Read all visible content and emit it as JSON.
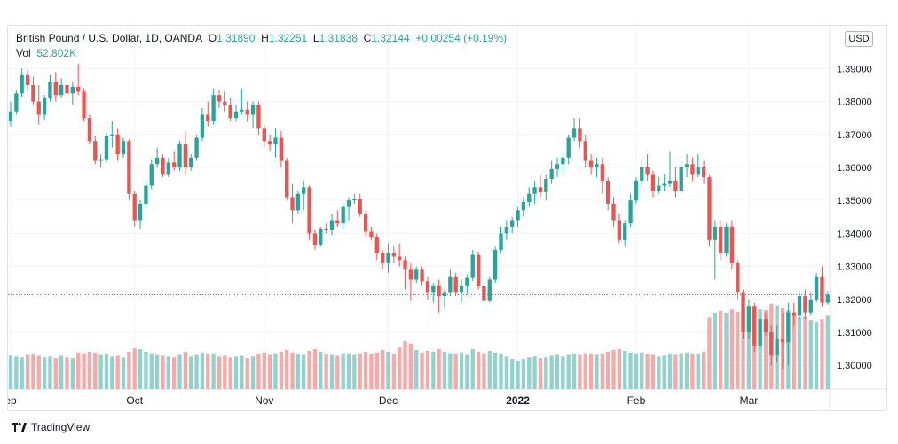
{
  "legend": {
    "symbol": "British Pound / U.S. Dollar, 1D, OANDA",
    "open_label": "O",
    "open": "1.31890",
    "high_label": "H",
    "high": "1.32251",
    "low_label": "L",
    "low": "1.31838",
    "close_label": "C",
    "close": "1.32144",
    "change": "+0.00254 (+0.19%)",
    "vol_label": "Vol",
    "vol": "52.802K"
  },
  "currency_button": "USD",
  "brand": {
    "name": "TradingView",
    "icon": "tradingview-logo-icon"
  },
  "colors": {
    "up": "#26a69a",
    "down": "#ef5350",
    "up_vol": "#92d2cc",
    "down_vol": "#f7a9a7",
    "grid": "#f0f3fa",
    "text": "#131722",
    "last_line": "#787b86"
  },
  "chart_data": {
    "type": "candlestick",
    "title": "British Pound / U.S. Dollar, 1D, OANDA",
    "y_ticks": [
      "1.39000",
      "1.38000",
      "1.37000",
      "1.36000",
      "1.35000",
      "1.34000",
      "1.33000",
      "1.32000",
      "1.31000",
      "1.30000"
    ],
    "y_range": [
      1.2928,
      1.403
    ],
    "x_ticks": [
      {
        "label": "ep",
        "index": 0
      },
      {
        "label": "Oct",
        "index": 22
      },
      {
        "label": "Nov",
        "index": 45
      },
      {
        "label": "Dec",
        "index": 67
      },
      {
        "label": "2022",
        "index": 90
      },
      {
        "label": "Feb",
        "index": 111
      },
      {
        "label": "Mar",
        "index": 131
      }
    ],
    "last_close": 1.32144,
    "candles": [
      [
        1.374,
        1.38,
        1.3725,
        1.377,
        82
      ],
      [
        1.377,
        1.3835,
        1.376,
        1.3825,
        80
      ],
      [
        1.3825,
        1.39,
        1.3815,
        1.388,
        78
      ],
      [
        1.388,
        1.3895,
        1.383,
        1.385,
        84
      ],
      [
        1.385,
        1.3875,
        1.379,
        1.38,
        86
      ],
      [
        1.38,
        1.385,
        1.373,
        1.376,
        82
      ],
      [
        1.376,
        1.382,
        1.3745,
        1.381,
        78
      ],
      [
        1.381,
        1.388,
        1.38,
        1.386,
        80
      ],
      [
        1.386,
        1.389,
        1.38,
        1.382,
        76
      ],
      [
        1.382,
        1.387,
        1.381,
        1.385,
        82
      ],
      [
        1.385,
        1.386,
        1.381,
        1.3825,
        78
      ],
      [
        1.3825,
        1.386,
        1.379,
        1.3845,
        76
      ],
      [
        1.3845,
        1.3915,
        1.382,
        1.383,
        90
      ],
      [
        1.383,
        1.384,
        1.374,
        1.375,
        88
      ],
      [
        1.375,
        1.376,
        1.367,
        1.368,
        92
      ],
      [
        1.368,
        1.3695,
        1.361,
        1.362,
        90
      ],
      [
        1.362,
        1.364,
        1.36,
        1.3625,
        84
      ],
      [
        1.3625,
        1.3705,
        1.3615,
        1.3695,
        86
      ],
      [
        1.3695,
        1.374,
        1.366,
        1.37,
        80
      ],
      [
        1.37,
        1.372,
        1.362,
        1.364,
        82
      ],
      [
        1.364,
        1.369,
        1.363,
        1.368,
        78
      ],
      [
        1.368,
        1.3685,
        1.35,
        1.352,
        92
      ],
      [
        1.352,
        1.353,
        1.342,
        1.344,
        100
      ],
      [
        1.344,
        1.35,
        1.3415,
        1.349,
        98
      ],
      [
        1.349,
        1.356,
        1.348,
        1.3545,
        92
      ],
      [
        1.3545,
        1.3625,
        1.3535,
        1.361,
        88
      ],
      [
        1.361,
        1.366,
        1.36,
        1.363,
        84
      ],
      [
        1.363,
        1.364,
        1.357,
        1.358,
        82
      ],
      [
        1.358,
        1.363,
        1.357,
        1.3615,
        80
      ],
      [
        1.3615,
        1.365,
        1.359,
        1.36,
        78
      ],
      [
        1.36,
        1.368,
        1.359,
        1.367,
        84
      ],
      [
        1.367,
        1.371,
        1.358,
        1.36,
        92
      ],
      [
        1.36,
        1.364,
        1.359,
        1.363,
        80
      ],
      [
        1.363,
        1.37,
        1.362,
        1.369,
        84
      ],
      [
        1.369,
        1.378,
        1.368,
        1.376,
        90
      ],
      [
        1.376,
        1.38,
        1.3725,
        1.374,
        86
      ],
      [
        1.374,
        1.384,
        1.373,
        1.382,
        88
      ],
      [
        1.382,
        1.3835,
        1.378,
        1.38,
        80
      ],
      [
        1.38,
        1.383,
        1.377,
        1.379,
        82
      ],
      [
        1.379,
        1.381,
        1.374,
        1.375,
        78
      ],
      [
        1.375,
        1.379,
        1.374,
        1.377,
        80
      ],
      [
        1.377,
        1.384,
        1.376,
        1.3775,
        82
      ],
      [
        1.3775,
        1.38,
        1.374,
        1.376,
        76
      ],
      [
        1.376,
        1.38,
        1.372,
        1.379,
        80
      ],
      [
        1.379,
        1.38,
        1.37,
        1.372,
        86
      ],
      [
        1.372,
        1.373,
        1.366,
        1.368,
        90
      ],
      [
        1.368,
        1.37,
        1.365,
        1.367,
        84
      ],
      [
        1.367,
        1.372,
        1.363,
        1.369,
        88
      ],
      [
        1.369,
        1.371,
        1.36,
        1.362,
        92
      ],
      [
        1.362,
        1.363,
        1.35,
        1.351,
        96
      ],
      [
        1.351,
        1.355,
        1.343,
        1.347,
        90
      ],
      [
        1.347,
        1.353,
        1.346,
        1.352,
        86
      ],
      [
        1.352,
        1.356,
        1.347,
        1.354,
        84
      ],
      [
        1.354,
        1.3545,
        1.338,
        1.34,
        94
      ],
      [
        1.34,
        1.341,
        1.335,
        1.3365,
        98
      ],
      [
        1.3365,
        1.342,
        1.336,
        1.3415,
        92
      ],
      [
        1.3415,
        1.343,
        1.34,
        1.341,
        86
      ],
      [
        1.341,
        1.346,
        1.3395,
        1.344,
        84
      ],
      [
        1.344,
        1.347,
        1.342,
        1.343,
        82
      ],
      [
        1.343,
        1.349,
        1.341,
        1.348,
        86
      ],
      [
        1.348,
        1.351,
        1.344,
        1.35,
        88
      ],
      [
        1.35,
        1.352,
        1.349,
        1.3505,
        84
      ],
      [
        1.3505,
        1.352,
        1.345,
        1.346,
        88
      ],
      [
        1.346,
        1.347,
        1.339,
        1.3405,
        92
      ],
      [
        1.3405,
        1.342,
        1.338,
        1.339,
        86
      ],
      [
        1.339,
        1.34,
        1.332,
        1.334,
        90
      ],
      [
        1.334,
        1.335,
        1.329,
        1.331,
        96
      ],
      [
        1.331,
        1.337,
        1.328,
        1.334,
        92
      ],
      [
        1.334,
        1.336,
        1.331,
        1.333,
        86
      ],
      [
        1.333,
        1.337,
        1.33,
        1.332,
        102
      ],
      [
        1.332,
        1.333,
        1.323,
        1.329,
        118
      ],
      [
        1.329,
        1.331,
        1.3195,
        1.326,
        112
      ],
      [
        1.326,
        1.33,
        1.325,
        1.329,
        96
      ],
      [
        1.329,
        1.33,
        1.324,
        1.3255,
        90
      ],
      [
        1.3255,
        1.327,
        1.32,
        1.322,
        94
      ],
      [
        1.322,
        1.325,
        1.319,
        1.324,
        92
      ],
      [
        1.324,
        1.326,
        1.316,
        1.321,
        98
      ],
      [
        1.321,
        1.323,
        1.317,
        1.322,
        92
      ],
      [
        1.322,
        1.329,
        1.321,
        1.327,
        88
      ],
      [
        1.327,
        1.328,
        1.321,
        1.322,
        86
      ],
      [
        1.322,
        1.326,
        1.319,
        1.324,
        90
      ],
      [
        1.324,
        1.3275,
        1.3215,
        1.3265,
        84
      ],
      [
        1.3265,
        1.335,
        1.3255,
        1.3335,
        98
      ],
      [
        1.3335,
        1.3345,
        1.323,
        1.324,
        92
      ],
      [
        1.324,
        1.325,
        1.318,
        1.3195,
        88
      ],
      [
        1.3195,
        1.327,
        1.319,
        1.326,
        94
      ],
      [
        1.326,
        1.336,
        1.325,
        1.335,
        90
      ],
      [
        1.335,
        1.342,
        1.334,
        1.34,
        86
      ],
      [
        1.34,
        1.344,
        1.338,
        1.342,
        80
      ],
      [
        1.342,
        1.345,
        1.34,
        1.344,
        74
      ],
      [
        1.344,
        1.348,
        1.342,
        1.347,
        70
      ],
      [
        1.347,
        1.351,
        1.345,
        1.3495,
        74
      ],
      [
        1.3495,
        1.354,
        1.348,
        1.352,
        78
      ],
      [
        1.352,
        1.356,
        1.349,
        1.354,
        80
      ],
      [
        1.354,
        1.358,
        1.351,
        1.3525,
        76
      ],
      [
        1.3525,
        1.358,
        1.35,
        1.3565,
        78
      ],
      [
        1.3565,
        1.362,
        1.355,
        1.3595,
        82
      ],
      [
        1.3595,
        1.363,
        1.357,
        1.361,
        84
      ],
      [
        1.361,
        1.364,
        1.358,
        1.363,
        80
      ],
      [
        1.363,
        1.37,
        1.361,
        1.369,
        84
      ],
      [
        1.369,
        1.375,
        1.368,
        1.372,
        86
      ],
      [
        1.372,
        1.375,
        1.366,
        1.368,
        84
      ],
      [
        1.368,
        1.37,
        1.36,
        1.362,
        88
      ],
      [
        1.362,
        1.364,
        1.358,
        1.36,
        86
      ],
      [
        1.36,
        1.363,
        1.357,
        1.361,
        84
      ],
      [
        1.361,
        1.363,
        1.352,
        1.356,
        88
      ],
      [
        1.356,
        1.357,
        1.347,
        1.349,
        92
      ],
      [
        1.349,
        1.351,
        1.342,
        1.344,
        96
      ],
      [
        1.344,
        1.346,
        1.337,
        1.338,
        98
      ],
      [
        1.338,
        1.344,
        1.336,
        1.343,
        94
      ],
      [
        1.343,
        1.352,
        1.342,
        1.35,
        90
      ],
      [
        1.35,
        1.357,
        1.349,
        1.356,
        88
      ],
      [
        1.356,
        1.362,
        1.354,
        1.36,
        90
      ],
      [
        1.36,
        1.364,
        1.356,
        1.358,
        86
      ],
      [
        1.358,
        1.359,
        1.351,
        1.353,
        84
      ],
      [
        1.353,
        1.357,
        1.352,
        1.3545,
        80
      ],
      [
        1.3545,
        1.358,
        1.353,
        1.355,
        82
      ],
      [
        1.355,
        1.365,
        1.354,
        1.356,
        86
      ],
      [
        1.356,
        1.36,
        1.351,
        1.353,
        84
      ],
      [
        1.353,
        1.362,
        1.352,
        1.36,
        88
      ],
      [
        1.36,
        1.364,
        1.357,
        1.361,
        90
      ],
      [
        1.361,
        1.363,
        1.356,
        1.358,
        86
      ],
      [
        1.358,
        1.364,
        1.357,
        1.36,
        88
      ],
      [
        1.36,
        1.362,
        1.355,
        1.357,
        92
      ],
      [
        1.357,
        1.358,
        1.336,
        1.338,
        176
      ],
      [
        1.338,
        1.344,
        1.326,
        1.342,
        188
      ],
      [
        1.342,
        1.344,
        1.332,
        1.334,
        192
      ],
      [
        1.334,
        1.343,
        1.333,
        1.342,
        188
      ],
      [
        1.342,
        1.344,
        1.329,
        1.331,
        196
      ],
      [
        1.331,
        1.332,
        1.32,
        1.322,
        190
      ],
      [
        1.322,
        1.323,
        1.308,
        1.31,
        196
      ],
      [
        1.31,
        1.32,
        1.308,
        1.318,
        200
      ],
      [
        1.318,
        1.319,
        1.304,
        1.306,
        198
      ],
      [
        1.306,
        1.315,
        1.305,
        1.314,
        196
      ],
      [
        1.314,
        1.316,
        1.309,
        1.31,
        194
      ],
      [
        1.31,
        1.312,
        1.3,
        1.303,
        210
      ],
      [
        1.303,
        1.312,
        1.301,
        1.308,
        206
      ],
      [
        1.308,
        1.316,
        1.299,
        1.307,
        200
      ],
      [
        1.307,
        1.319,
        1.3,
        1.316,
        194
      ],
      [
        1.316,
        1.319,
        1.312,
        1.315,
        186
      ],
      [
        1.315,
        1.322,
        1.314,
        1.321,
        176
      ],
      [
        1.321,
        1.323,
        1.314,
        1.316,
        178
      ],
      [
        1.316,
        1.322,
        1.315,
        1.32,
        170
      ],
      [
        1.32,
        1.328,
        1.319,
        1.327,
        166
      ],
      [
        1.327,
        1.33,
        1.318,
        1.319,
        172
      ],
      [
        1.319,
        1.3225,
        1.3184,
        1.3214,
        180
      ]
    ]
  }
}
